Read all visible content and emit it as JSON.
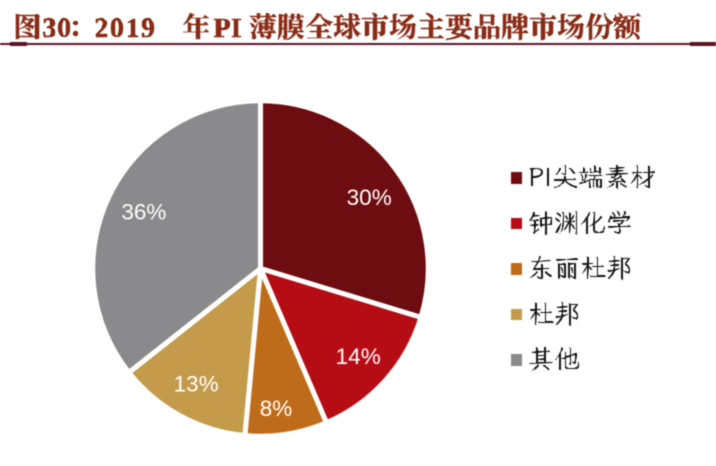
{
  "header": {
    "title": "图 30：2019 年 PI 薄膜全球市场主要品牌市场份额"
  },
  "chart_data": {
    "type": "pie",
    "title": "2019 年 PI 薄膜全球市场主要品牌市场份额",
    "categories": [
      "PI尖端素材",
      "钟渊化学",
      "东丽杜邦",
      "杜邦",
      "其他"
    ],
    "values": [
      30,
      14,
      8,
      13,
      36
    ],
    "labels": [
      "30%",
      "14%",
      "8%",
      "13%",
      "36%"
    ],
    "colors": [
      "#6d0d0f",
      "#b60d15",
      "#bf6c1a",
      "#c39b4a",
      "#8a8a8c"
    ],
    "label_color": "#ffffff",
    "legend_position": "right",
    "unit": "%"
  },
  "style": {
    "title_color": "#8a2b15",
    "rule_color": "#5c1423",
    "background": "#ffffff",
    "legend_text_color": "#141414"
  }
}
